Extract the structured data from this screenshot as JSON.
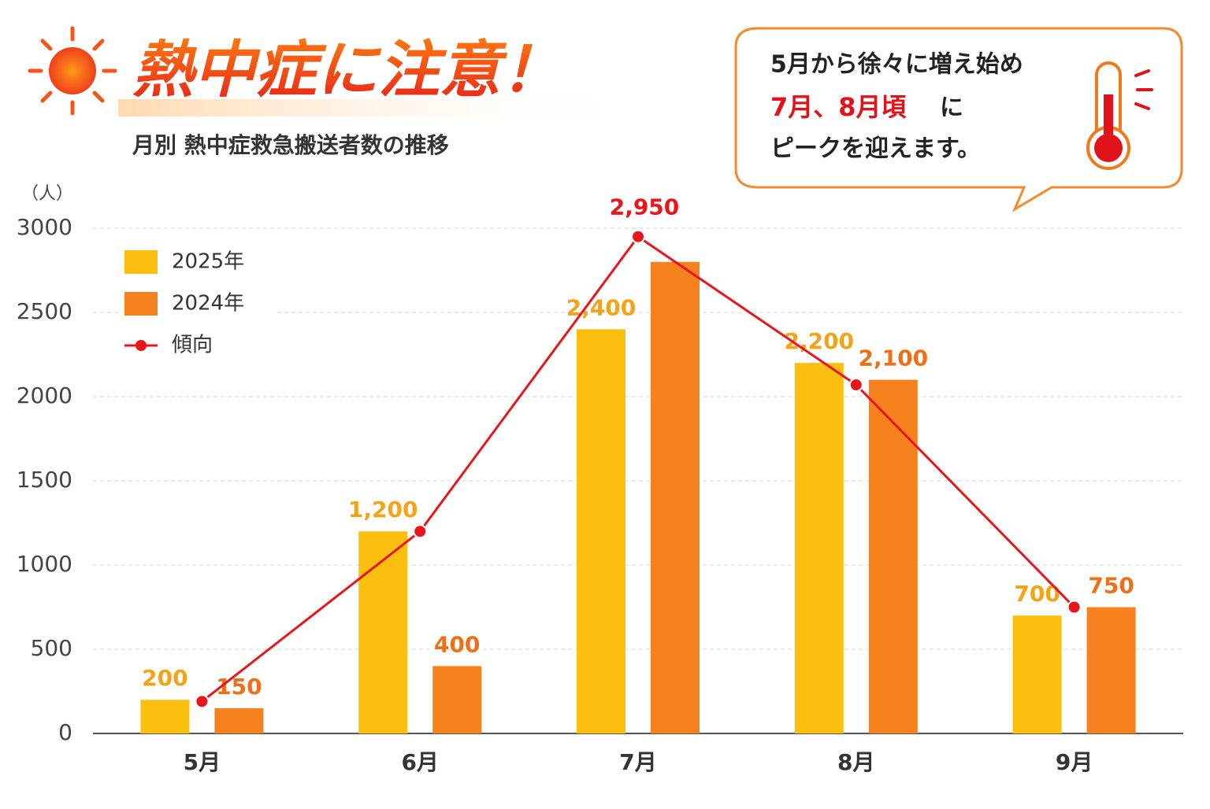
{
  "chart_data": {
    "type": "bar_line",
    "title": "熱中症に注意！",
    "subtitle": "月別 熱中症救急搬送者数の推移",
    "y_unit": "（人）",
    "callout": {
      "line1": "5月から徐々に増え始め",
      "highlight": "7月、8月頃",
      "line2_rest": "に",
      "line3": "ピークを迎えます。"
    },
    "categories": [
      "5月",
      "6月",
      "7月",
      "8月",
      "9月"
    ],
    "series": [
      {
        "name": "2025年",
        "kind": "bar",
        "color": "#fdbf0f",
        "label_color": "#f5a316",
        "values": [
          200,
          1200,
          2400,
          2200,
          700
        ],
        "value_labels": [
          "200",
          "1,200",
          "2,400",
          "2,200",
          "700"
        ]
      },
      {
        "name": "2024年",
        "kind": "bar",
        "color": "#f5821f",
        "label_color": "#ef6f14",
        "values": [
          150,
          400,
          2800,
          2100,
          750
        ],
        "value_labels": [
          "150",
          "400",
          null,
          "2,100",
          "750"
        ]
      },
      {
        "name": "傾向",
        "kind": "line",
        "color": "#e8151b",
        "label_color": "#e8151b",
        "values": [
          190,
          1200,
          2950,
          2070,
          750
        ],
        "value_labels": [
          null,
          null,
          "2,950",
          null,
          null
        ]
      }
    ],
    "ylim": [
      0,
      3000
    ],
    "yticks": [
      0,
      500,
      1000,
      1500,
      2000,
      2500,
      3000
    ],
    "grid": true
  }
}
